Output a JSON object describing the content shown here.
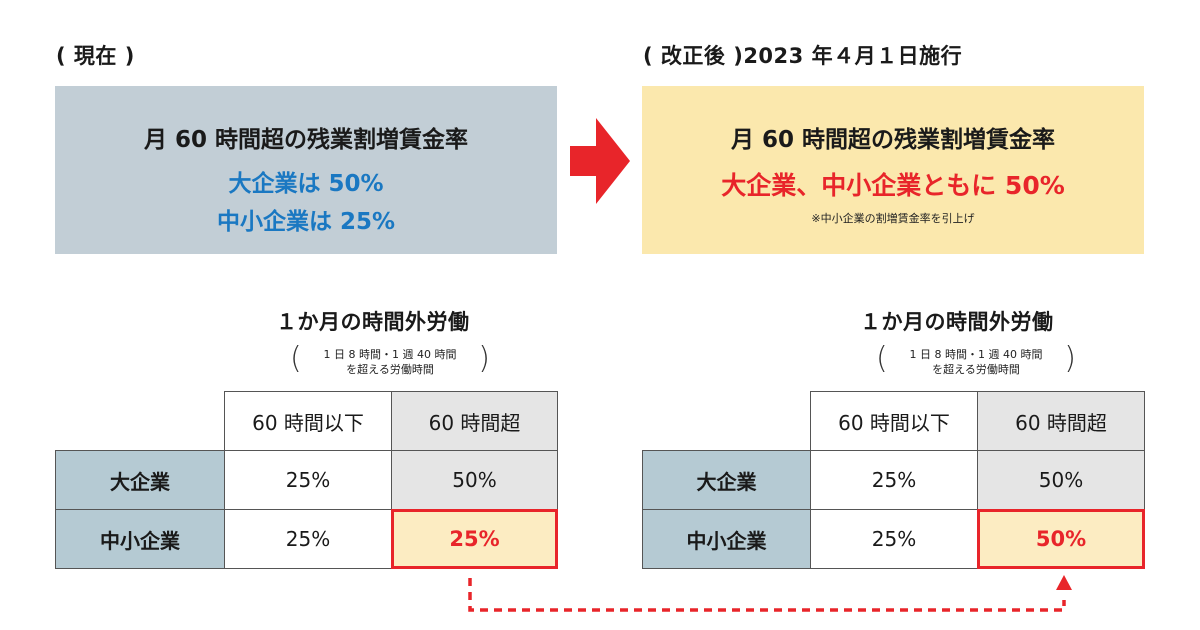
{
  "current": {
    "label": "( 現在 )",
    "heading": "月 60 時間超の残業割増賃金率",
    "line1": "大企業は 50%",
    "line2": "中小企業は 25%"
  },
  "revised": {
    "label": "( 改正後 )2023 年４月１日施行",
    "heading": "月 60 時間超の残業割増賃金率",
    "line1": "大企業、中小企業ともに 50%",
    "note": "※中小企業の割増賃金率を引上げ"
  },
  "colors": {
    "current_panel": "#c2ced6",
    "revised_panel": "#fbe8ad",
    "blue_text": "#1a78c2",
    "red_accent": "#e8252a",
    "row_header": "#b5cad3",
    "gray_cell": "#e5e5e5",
    "highlight_cell": "#fcecc2"
  },
  "tables": [
    {
      "title": "１か月の時間外労働",
      "subtitle_line1": "1 日 8 時間・1 週 40 時間",
      "subtitle_line2": "を超える労働時間",
      "paren_open": "(",
      "paren_close": ")",
      "columns": [
        "60 時間以下",
        "60 時間超"
      ],
      "rows": [
        {
          "label": "大企業",
          "values": [
            "25%",
            "50%"
          ]
        },
        {
          "label": "中小企業",
          "values": [
            "25%",
            "25%"
          ]
        }
      ]
    },
    {
      "title": "１か月の時間外労働",
      "subtitle_line1": "1 日 8 時間・1 週 40 時間",
      "subtitle_line2": "を超える労働時間",
      "paren_open": "(",
      "paren_close": ")",
      "columns": [
        "60 時間以下",
        "60 時間超"
      ],
      "rows": [
        {
          "label": "大企業",
          "values": [
            "25%",
            "50%"
          ]
        },
        {
          "label": "中小企業",
          "values": [
            "25%",
            "50%"
          ]
        }
      ]
    }
  ]
}
